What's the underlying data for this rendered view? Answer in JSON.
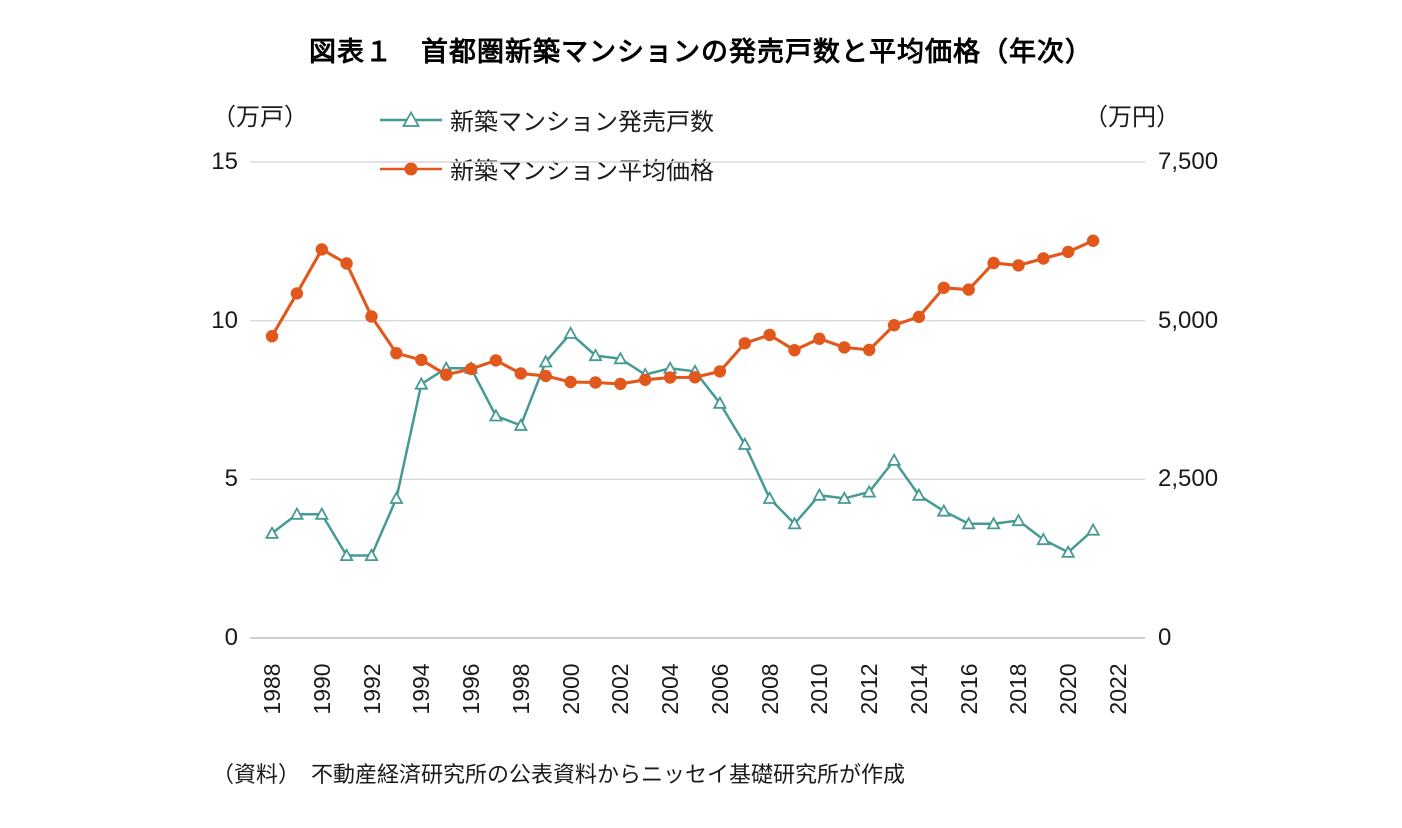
{
  "title": "図表１　首都圏新築マンションの発売戸数と平均価格（年次）",
  "left_axis": {
    "unit": "（万戸）",
    "ticks": [
      {
        "value": 0,
        "label": "0"
      },
      {
        "value": 5,
        "label": "5"
      },
      {
        "value": 10,
        "label": "10"
      },
      {
        "value": 15,
        "label": "15"
      }
    ]
  },
  "right_axis": {
    "unit": "（万円）",
    "ticks": [
      {
        "value": 0,
        "label": "0"
      },
      {
        "value": 2500,
        "label": "2,500"
      },
      {
        "value": 5000,
        "label": "5,000"
      },
      {
        "value": 7500,
        "label": "7,500"
      }
    ]
  },
  "source_note": "（資料）　不動産経済研究所の公表資料からニッセイ基礎研究所が作成",
  "colors": {
    "grid": "#d9d9d9",
    "axis_line": "#bfbfbf",
    "text": "#1a1a1a",
    "units_series": "#459a94",
    "price_series": "#e2571b"
  },
  "chart_data": {
    "type": "line",
    "title": "図表１　首都圏新築マンションの発売戸数と平均価格（年次）",
    "x": [
      1988,
      1989,
      1990,
      1991,
      1992,
      1993,
      1994,
      1995,
      1996,
      1997,
      1998,
      1999,
      2000,
      2001,
      2002,
      2003,
      2004,
      2005,
      2006,
      2007,
      2008,
      2009,
      2010,
      2011,
      2012,
      2013,
      2014,
      2015,
      2016,
      2017,
      2018,
      2019,
      2020,
      2021
    ],
    "x_axis_range": [
      1988,
      2022
    ],
    "x_tick_labels": [
      "1988",
      "1990",
      "1992",
      "1994",
      "1996",
      "1998",
      "2000",
      "2002",
      "2004",
      "2006",
      "2008",
      "2010",
      "2012",
      "2014",
      "2016",
      "2018",
      "2020",
      "2022"
    ],
    "left_ylabel": "（万戸）",
    "right_ylabel": "（万円）",
    "left_ylim": [
      0,
      15
    ],
    "right_ylim": [
      0,
      7500
    ],
    "grid": true,
    "legend_position": "top-left",
    "series": [
      {
        "name": "新築マンション発売戸数",
        "axis": "left",
        "unit": "万戸",
        "marker": "triangle-open",
        "color": "#459a94",
        "values": [
          3.3,
          3.9,
          3.9,
          2.6,
          2.6,
          4.4,
          8.0,
          8.5,
          8.5,
          7.0,
          6.7,
          8.7,
          9.6,
          8.9,
          8.8,
          8.3,
          8.5,
          8.4,
          7.4,
          6.1,
          4.4,
          3.6,
          4.5,
          4.4,
          4.6,
          5.6,
          4.5,
          4.0,
          3.6,
          3.6,
          3.7,
          3.1,
          2.7,
          3.4
        ]
      },
      {
        "name": "新築マンション平均価格",
        "axis": "right",
        "unit": "万円",
        "marker": "circle",
        "color": "#e2571b",
        "values": [
          4755,
          5430,
          6123,
          5900,
          5066,
          4488,
          4382,
          4148,
          4239,
          4374,
          4168,
          4129,
          4034,
          4026,
          4003,
          4069,
          4104,
          4108,
          4200,
          4644,
          4775,
          4535,
          4716,
          4578,
          4540,
          4929,
          5060,
          5518,
          5490,
          5908,
          5871,
          5980,
          6083,
          6260
        ]
      }
    ]
  }
}
